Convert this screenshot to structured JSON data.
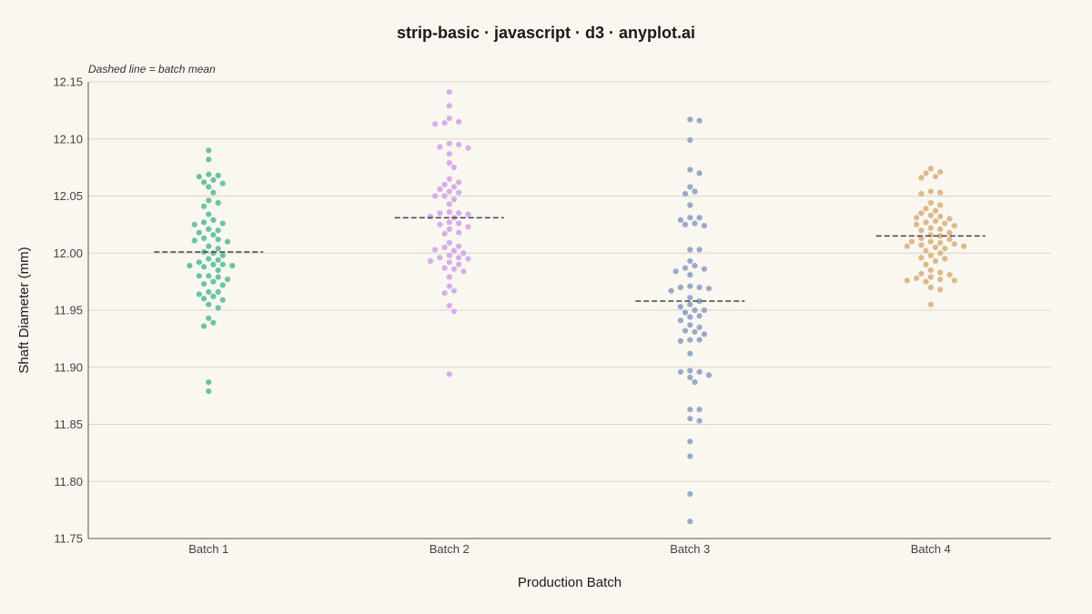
{
  "chart_data": {
    "type": "scatter",
    "title": "strip-basic · javascript · d3 · anyplot.ai",
    "annotation": "Dashed line = batch mean",
    "xlabel": "Production Batch",
    "ylabel": "Shaft Diameter (mm)",
    "ylim": [
      11.75,
      12.15
    ],
    "yticks": [
      "11.75",
      "11.80",
      "11.85",
      "11.90",
      "11.95",
      "12.00",
      "12.05",
      "12.10",
      "12.15"
    ],
    "grid": true,
    "categories": [
      "Batch 1",
      "Batch 2",
      "Batch 3",
      "Batch 4"
    ],
    "series": [
      {
        "color": "#5dbf9a",
        "mean": 12.001,
        "values": [
          12.09,
          12.082,
          12.069,
          12.068,
          12.067,
          12.064,
          12.062,
          12.061,
          12.058,
          12.053,
          12.046,
          12.044,
          12.041,
          12.034,
          12.029,
          12.027,
          12.026,
          12.025,
          12.021,
          12.02,
          12.018,
          12.016,
          12.013,
          12.012,
          12.011,
          12.01,
          12.006,
          12.004,
          12.001,
          12.0,
          11.998,
          11.995,
          11.994,
          11.992,
          11.99,
          11.99,
          11.989,
          11.989,
          11.988,
          11.985,
          11.98,
          11.98,
          11.979,
          11.977,
          11.975,
          11.973,
          11.972,
          11.966,
          11.966,
          11.964,
          11.962,
          11.96,
          11.959,
          11.955,
          11.952,
          11.943,
          11.939,
          11.936,
          11.887,
          11.879
        ]
      },
      {
        "color": "#d4a6ec",
        "mean": 12.031,
        "values": [
          12.141,
          12.129,
          12.118,
          12.115,
          12.114,
          12.113,
          12.096,
          12.095,
          12.093,
          12.092,
          12.087,
          12.079,
          12.075,
          12.065,
          12.062,
          12.06,
          12.058,
          12.056,
          12.054,
          12.053,
          12.05,
          12.05,
          12.047,
          12.043,
          12.036,
          12.035,
          12.035,
          12.034,
          12.032,
          12.031,
          12.027,
          12.026,
          12.025,
          12.023,
          12.021,
          12.018,
          12.017,
          12.009,
          12.006,
          12.005,
          12.003,
          12.002,
          12.0,
          11.998,
          11.996,
          11.996,
          11.995,
          11.993,
          11.992,
          11.99,
          11.987,
          11.986,
          11.984,
          11.979,
          11.971,
          11.967,
          11.965,
          11.954,
          11.949,
          11.894
        ]
      },
      {
        "color": "#8fa3c6",
        "mean": 11.958,
        "values": [
          12.117,
          12.116,
          12.099,
          12.073,
          12.07,
          12.058,
          12.054,
          12.052,
          12.042,
          12.031,
          12.031,
          12.029,
          12.026,
          12.025,
          12.024,
          12.003,
          12.003,
          11.993,
          11.989,
          11.987,
          11.986,
          11.984,
          11.981,
          11.971,
          11.97,
          11.97,
          11.969,
          11.967,
          11.961,
          11.958,
          11.955,
          11.953,
          11.95,
          11.95,
          11.948,
          11.945,
          11.944,
          11.941,
          11.937,
          11.935,
          11.932,
          11.931,
          11.929,
          11.924,
          11.924,
          11.923,
          11.912,
          11.897,
          11.896,
          11.896,
          11.893,
          11.891,
          11.887,
          11.863,
          11.863,
          11.855,
          11.853,
          11.835,
          11.822,
          11.789,
          11.765
        ]
      },
      {
        "color": "#d9b482",
        "mean": 12.015,
        "values": [
          12.074,
          12.071,
          12.07,
          12.067,
          12.066,
          12.054,
          12.053,
          12.052,
          12.044,
          12.042,
          12.039,
          12.037,
          12.035,
          12.033,
          12.032,
          12.031,
          12.03,
          12.028,
          12.027,
          12.026,
          12.025,
          12.024,
          12.022,
          12.021,
          12.02,
          12.018,
          12.016,
          12.015,
          12.013,
          12.012,
          12.01,
          12.01,
          12.009,
          12.008,
          12.007,
          12.006,
          12.006,
          12.005,
          12.004,
          12.002,
          12.0,
          11.998,
          11.996,
          11.995,
          11.993,
          11.99,
          11.985,
          11.983,
          11.982,
          11.981,
          11.979,
          11.978,
          11.977,
          11.976,
          11.976,
          11.975,
          11.97,
          11.968,
          11.955
        ]
      }
    ]
  }
}
